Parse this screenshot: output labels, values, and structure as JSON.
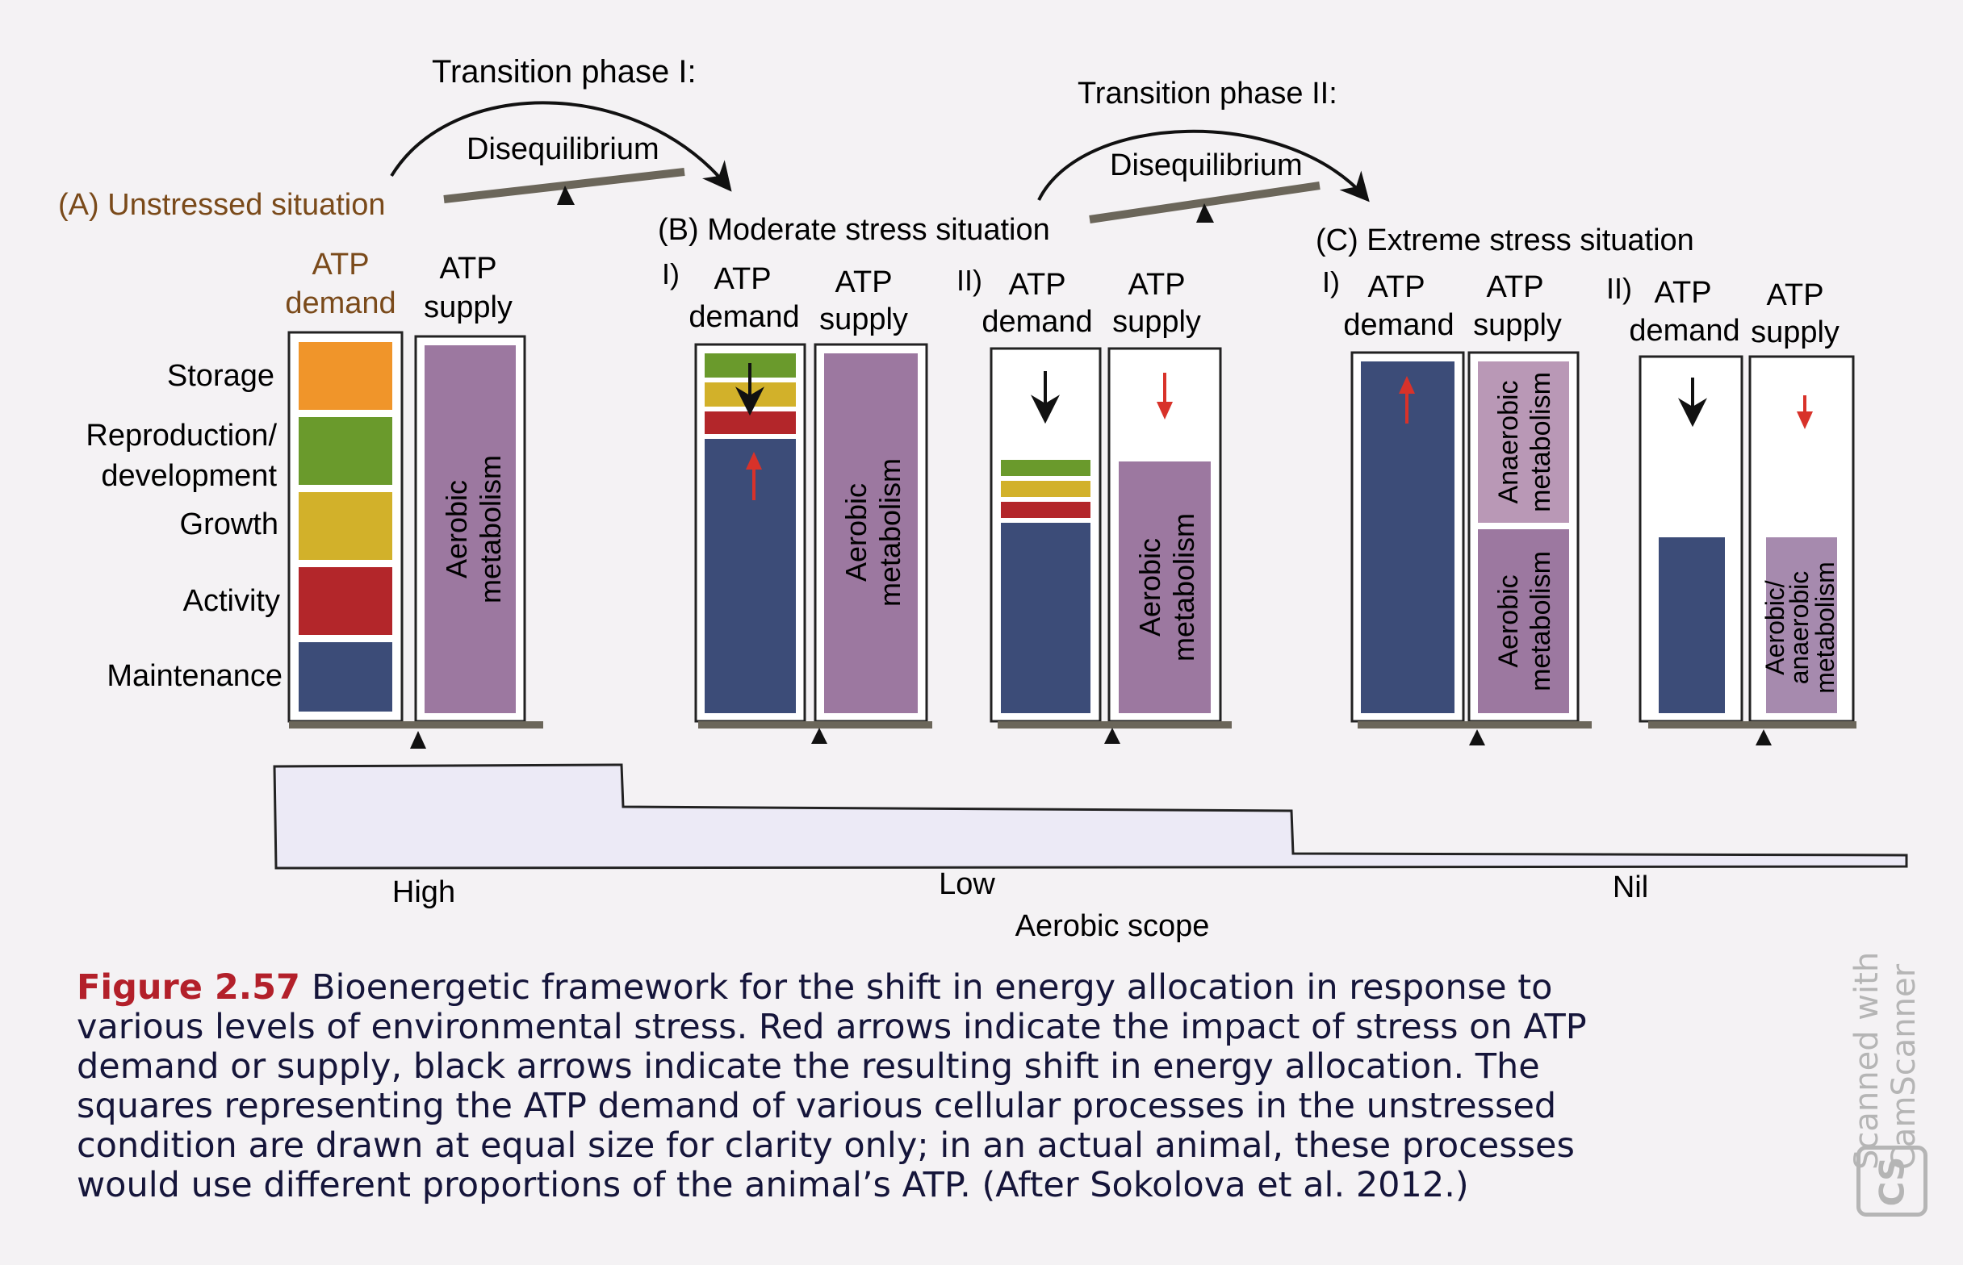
{
  "phases": {
    "phase1_title": "Transition phase I:",
    "phase1_label": "Disequilibrium",
    "phase2_title": "Transition phase II:",
    "phase2_label": "Disequilibrium"
  },
  "panels": {
    "a_title": "(A)  Unstressed situation",
    "b_title": "(B)  Moderate stress situation",
    "c_title": "(C)  Extreme stress situation",
    "sub_i": "I)",
    "sub_ii": "II)"
  },
  "column_labels": {
    "demand_line1": "ATP",
    "demand_line2": "demand",
    "supply_line1": "ATP",
    "supply_line2": "supply"
  },
  "processes": {
    "storage": "Storage",
    "reproduction_line1": "Reproduction/",
    "reproduction_line2": "development",
    "growth": "Growth",
    "activity": "Activity",
    "maintenance": "Maintenance"
  },
  "metabolism": {
    "aerobic_line1": "Aerobic",
    "aerobic_line2": "metabolism",
    "anaerobic_line1": "Anaerobic",
    "anaerobic_line2": "metabolism",
    "mixed_line1": "Aerobic/",
    "mixed_line2": "anaerobic",
    "mixed_line3": "metabolism"
  },
  "aerobic_scope": {
    "title": "Aerobic scope",
    "high": "High",
    "low": "Low",
    "nil": "Nil"
  },
  "caption": {
    "label": "Figure 2.57",
    "text": "Bioenergetic framework for the shift in energy allocation in response to various levels of environmental stress. Red arrows indicate the impact of stress on ATP demand or supply, black arrows indicate the resulting shift in energy allocation. The squares representing the ATP demand of various cellular processes in the unstressed condition are drawn at equal size for clarity only; in an actual animal, these processes would use different proportions of the animal’s ATP. (After Sokolova et al. 2012.)"
  },
  "watermark": {
    "line1": "Scanned with",
    "line2": "CamScanner",
    "logo": "CS"
  },
  "colors": {
    "storage": "#f0952a",
    "reproduction": "#6a9a2c",
    "growth": "#d2b12a",
    "activity": "#b3262a",
    "maintenance": "#3c4c78",
    "aerobic": "#9c78a0",
    "stress_arrow": "#d8322a",
    "shift_arrow": "#111111",
    "beam": "#6b665a",
    "scope_fill": "#eceaf6"
  }
}
